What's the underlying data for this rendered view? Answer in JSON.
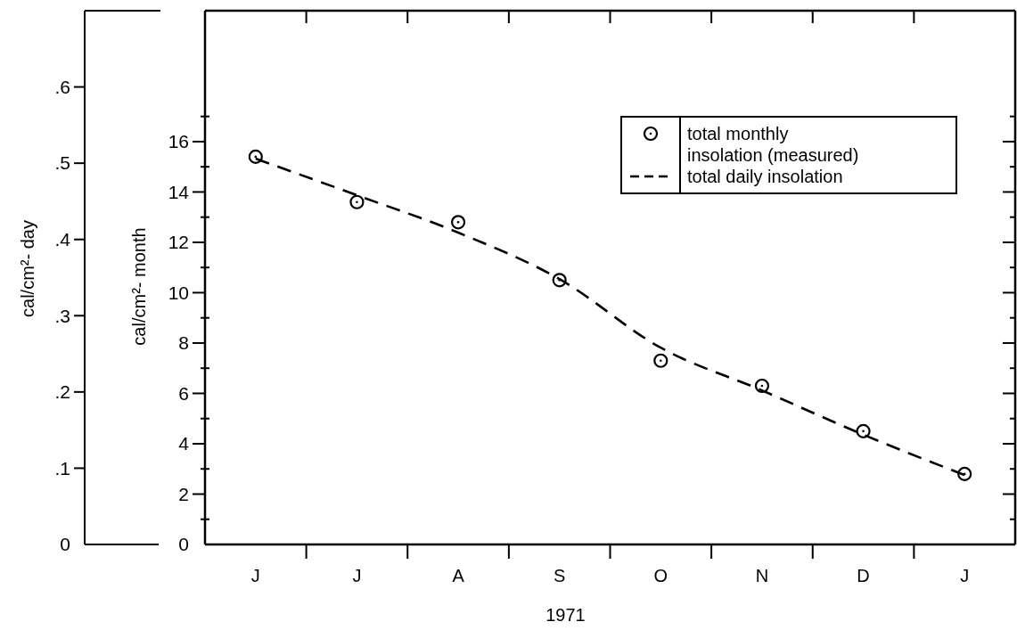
{
  "chart_data": {
    "type": "scatter",
    "xlabel": "1971",
    "ylabel": "cal/cm²- month",
    "y2label": "cal/cm²- day",
    "categories": [
      "J",
      "J",
      "A",
      "S",
      "O",
      "N",
      "D",
      "J"
    ],
    "ylim": [
      0,
      21.2
    ],
    "yticks": [
      0,
      {
        "value": 1,
        "label": null
      },
      2,
      {
        "value": 3,
        "label": null
      },
      4,
      {
        "value": 5,
        "label": null
      },
      6,
      {
        "value": 7,
        "label": null
      },
      8,
      {
        "value": 9,
        "label": null
      },
      10,
      {
        "value": 11,
        "label": null
      },
      12,
      {
        "value": 13,
        "label": null
      },
      14,
      {
        "value": 15,
        "label": null
      },
      16,
      {
        "value": 17,
        "label": null
      }
    ],
    "y2lim": [
      0,
      0.7
    ],
    "y2ticks": [
      0,
      {
        "value": 0.1,
        "label": ".1"
      },
      {
        "value": 0.2,
        "label": ".2"
      },
      {
        "value": 0.3,
        "label": ".3"
      },
      {
        "value": 0.4,
        "label": ".4"
      },
      {
        "value": 0.5,
        "label": ".5"
      },
      {
        "value": 0.6,
        "label": ".6"
      }
    ],
    "legend": "top right",
    "series": [
      {
        "name": "total monthly insolation (measured)",
        "marker": "circle",
        "color": "#000000",
        "values": [
          15.4,
          13.6,
          12.8,
          10.5,
          7.3,
          6.3,
          4.5,
          2.8
        ]
      },
      {
        "name": "total daily insolation",
        "type": "line",
        "marker": "none",
        "axis": "y2",
        "line_style": "dashed",
        "color": "#000000",
        "values": [
          0.506,
          0.458,
          0.409,
          0.348,
          0.258,
          0.202,
          0.144,
          0.091
        ]
      }
    ]
  }
}
